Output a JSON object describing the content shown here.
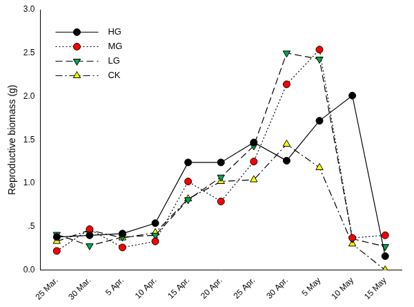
{
  "chart_data": {
    "type": "line",
    "y_label": "Reproductive biomass (g)",
    "categories": [
      "25 Mar.",
      "30 Mar.",
      "5 Apr.",
      "10 Apr.",
      "15 Apr.",
      "20 Apr.",
      "25 Apr.",
      "30 Apr.",
      "5 May",
      "10 May",
      "15 May"
    ],
    "series": [
      {
        "name": "HG",
        "color": "#000000",
        "marker": "circle",
        "line_style": "solid",
        "values": [
          0.38,
          0.4,
          0.42,
          0.54,
          1.24,
          1.24,
          1.47,
          1.26,
          1.72,
          2.01,
          0.16
        ]
      },
      {
        "name": "MG",
        "color": "#ff0000",
        "marker": "circle",
        "line_style": "dotted",
        "values": [
          0.22,
          0.47,
          0.26,
          0.33,
          1.02,
          0.79,
          1.25,
          2.14,
          2.54,
          0.37,
          0.4
        ]
      },
      {
        "name": "LG",
        "color": "#00a651",
        "marker": "triangle-down",
        "line_style": "dashed",
        "values": [
          0.41,
          0.28,
          0.38,
          0.4,
          0.81,
          1.07,
          1.43,
          2.5,
          2.43,
          0.36,
          0.27
        ]
      },
      {
        "name": "CK",
        "color": "#ffff00",
        "marker": "triangle-up",
        "line_style": "dashdot",
        "values": [
          0.33,
          0.46,
          0.37,
          0.43,
          0.82,
          1.02,
          1.04,
          1.45,
          1.18,
          0.3,
          0.0
        ]
      }
    ],
    "ylim": [
      0,
      3
    ],
    "yticks": [
      {
        "value": 0,
        "label": "0.0"
      },
      {
        "value": 0.5,
        "label": ".5"
      },
      {
        "value": 1,
        "label": "1.0"
      },
      {
        "value": 1.5,
        "label": "1.5"
      },
      {
        "value": 2,
        "label": "2.0"
      },
      {
        "value": 2.5,
        "label": "2.5"
      },
      {
        "value": 3,
        "label": "3.0"
      }
    ],
    "grid": false,
    "legend": "upper left"
  }
}
